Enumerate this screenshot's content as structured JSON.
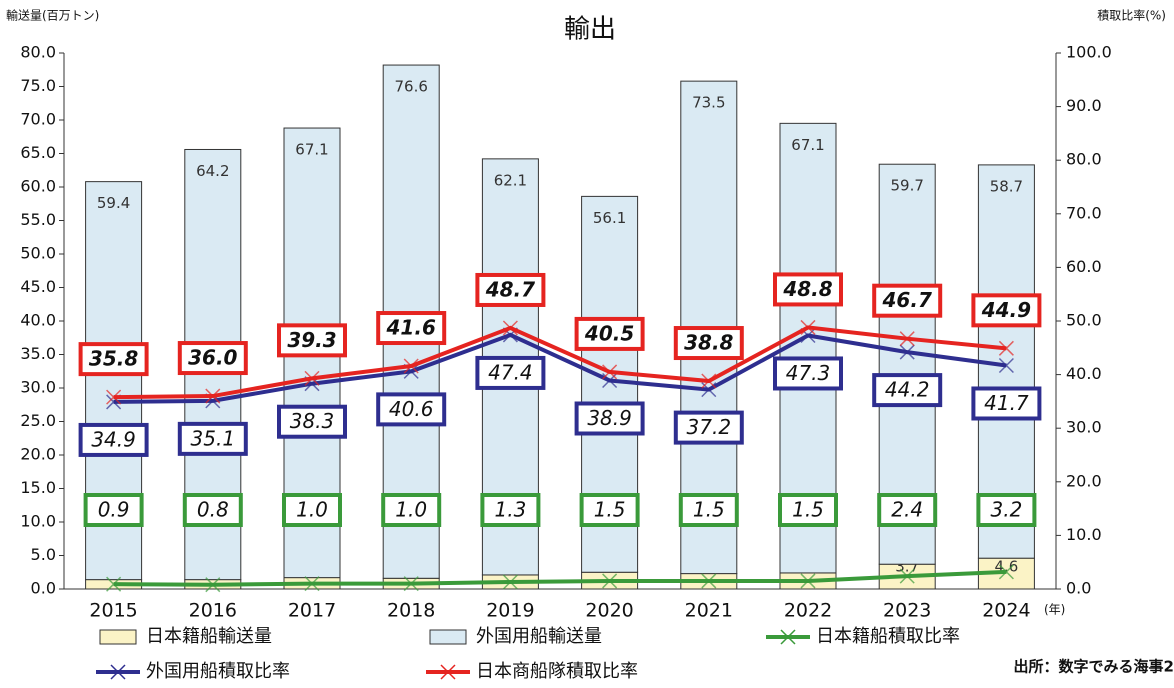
{
  "chart_data": {
    "type": "bar",
    "stacked": true,
    "title": "輸出",
    "y_label": "輸送量(百万トン)",
    "y2_label": "積取比率(%)",
    "x_unit": "(年)",
    "source": "出所：数字でみる海事2",
    "categories": [
      "2015",
      "2016",
      "2017",
      "2018",
      "2019",
      "2020",
      "2021",
      "2022",
      "2023",
      "2024"
    ],
    "ylim": [
      0,
      80
    ],
    "yticks": [
      {
        "value": 0,
        "label": "0.0"
      },
      {
        "value": 5,
        "label": "5.0"
      },
      {
        "value": 10,
        "label": "10.0"
      },
      {
        "value": 15,
        "label": "15.0"
      },
      {
        "value": 20,
        "label": "20.0"
      },
      {
        "value": 25,
        "label": "25.0"
      },
      {
        "value": 30,
        "label": "30.0"
      },
      {
        "value": 35,
        "label": "35.0"
      },
      {
        "value": 40,
        "label": "40.0"
      },
      {
        "value": 45,
        "label": "45.0"
      },
      {
        "value": 50,
        "label": "50.0"
      },
      {
        "value": 55,
        "label": "55.0"
      },
      {
        "value": 60,
        "label": "60.0"
      },
      {
        "value": 65,
        "label": "65.0"
      },
      {
        "value": 70,
        "label": "70.0"
      },
      {
        "value": 75,
        "label": "75.0"
      },
      {
        "value": 80,
        "label": "80.0"
      }
    ],
    "y2lim": [
      0,
      100
    ],
    "y2ticks": [
      {
        "value": 0,
        "label": "0.0"
      },
      {
        "value": 10,
        "label": "10.0"
      },
      {
        "value": 20,
        "label": "20.0"
      },
      {
        "value": 30,
        "label": "30.0"
      },
      {
        "value": 40,
        "label": "40.0"
      },
      {
        "value": 50,
        "label": "50.0"
      },
      {
        "value": 60,
        "label": "60.0"
      },
      {
        "value": 70,
        "label": "70.0"
      },
      {
        "value": 80,
        "label": "80.0"
      },
      {
        "value": 90,
        "label": "90.0"
      },
      {
        "value": 100,
        "label": "100.0"
      }
    ],
    "series": [
      {
        "name": "日本籍船輸送量",
        "type": "bar",
        "color": "#fbf3c6",
        "values": [
          1.4,
          1.4,
          1.7,
          1.6,
          2.1,
          2.5,
          2.3,
          2.4,
          3.7,
          4.6
        ],
        "value_labels": [
          "1.4",
          "1.4",
          "1.7",
          "1.6",
          "2.1",
          "2.5",
          "2.3",
          "2.4",
          "3.7",
          "4.6"
        ]
      },
      {
        "name": "外国用船輸送量",
        "type": "bar",
        "color": "#daeaf3",
        "values": [
          59.4,
          64.2,
          67.1,
          76.6,
          62.1,
          56.1,
          73.5,
          67.1,
          59.7,
          58.7
        ],
        "value_labels": [
          "59.4",
          "64.2",
          "67.1",
          "76.6",
          "62.1",
          "56.1",
          "73.5",
          "67.1",
          "59.7",
          "58.7"
        ]
      },
      {
        "name": "日本籍船積取比率",
        "type": "line",
        "axis": "y2",
        "color": "#3a9a3a",
        "values": [
          0.9,
          0.8,
          1.0,
          1.0,
          1.3,
          1.5,
          1.5,
          1.5,
          2.4,
          3.2
        ],
        "value_labels": [
          "0.9",
          "0.8",
          "1.0",
          "1.0",
          "1.3",
          "1.5",
          "1.5",
          "1.5",
          "2.4",
          "3.2"
        ]
      },
      {
        "name": "外国用船積取比率",
        "type": "line",
        "axis": "y2",
        "color": "#2e2e8f",
        "values": [
          34.9,
          35.1,
          38.3,
          40.6,
          47.4,
          38.9,
          37.2,
          47.3,
          44.2,
          41.7
        ],
        "value_labels": [
          "34.9",
          "35.1",
          "38.3",
          "40.6",
          "47.4",
          "38.9",
          "37.2",
          "47.3",
          "44.2",
          "41.7"
        ]
      },
      {
        "name": "日本商船隊積取比率",
        "type": "line",
        "axis": "y2",
        "color": "#e52420",
        "values": [
          35.8,
          36.0,
          39.3,
          41.6,
          48.7,
          40.5,
          38.8,
          48.8,
          46.7,
          44.9
        ],
        "value_labels": [
          "35.8",
          "36.0",
          "39.3",
          "41.6",
          "48.7",
          "40.5",
          "38.8",
          "48.8",
          "46.7",
          "44.9"
        ]
      }
    ]
  }
}
